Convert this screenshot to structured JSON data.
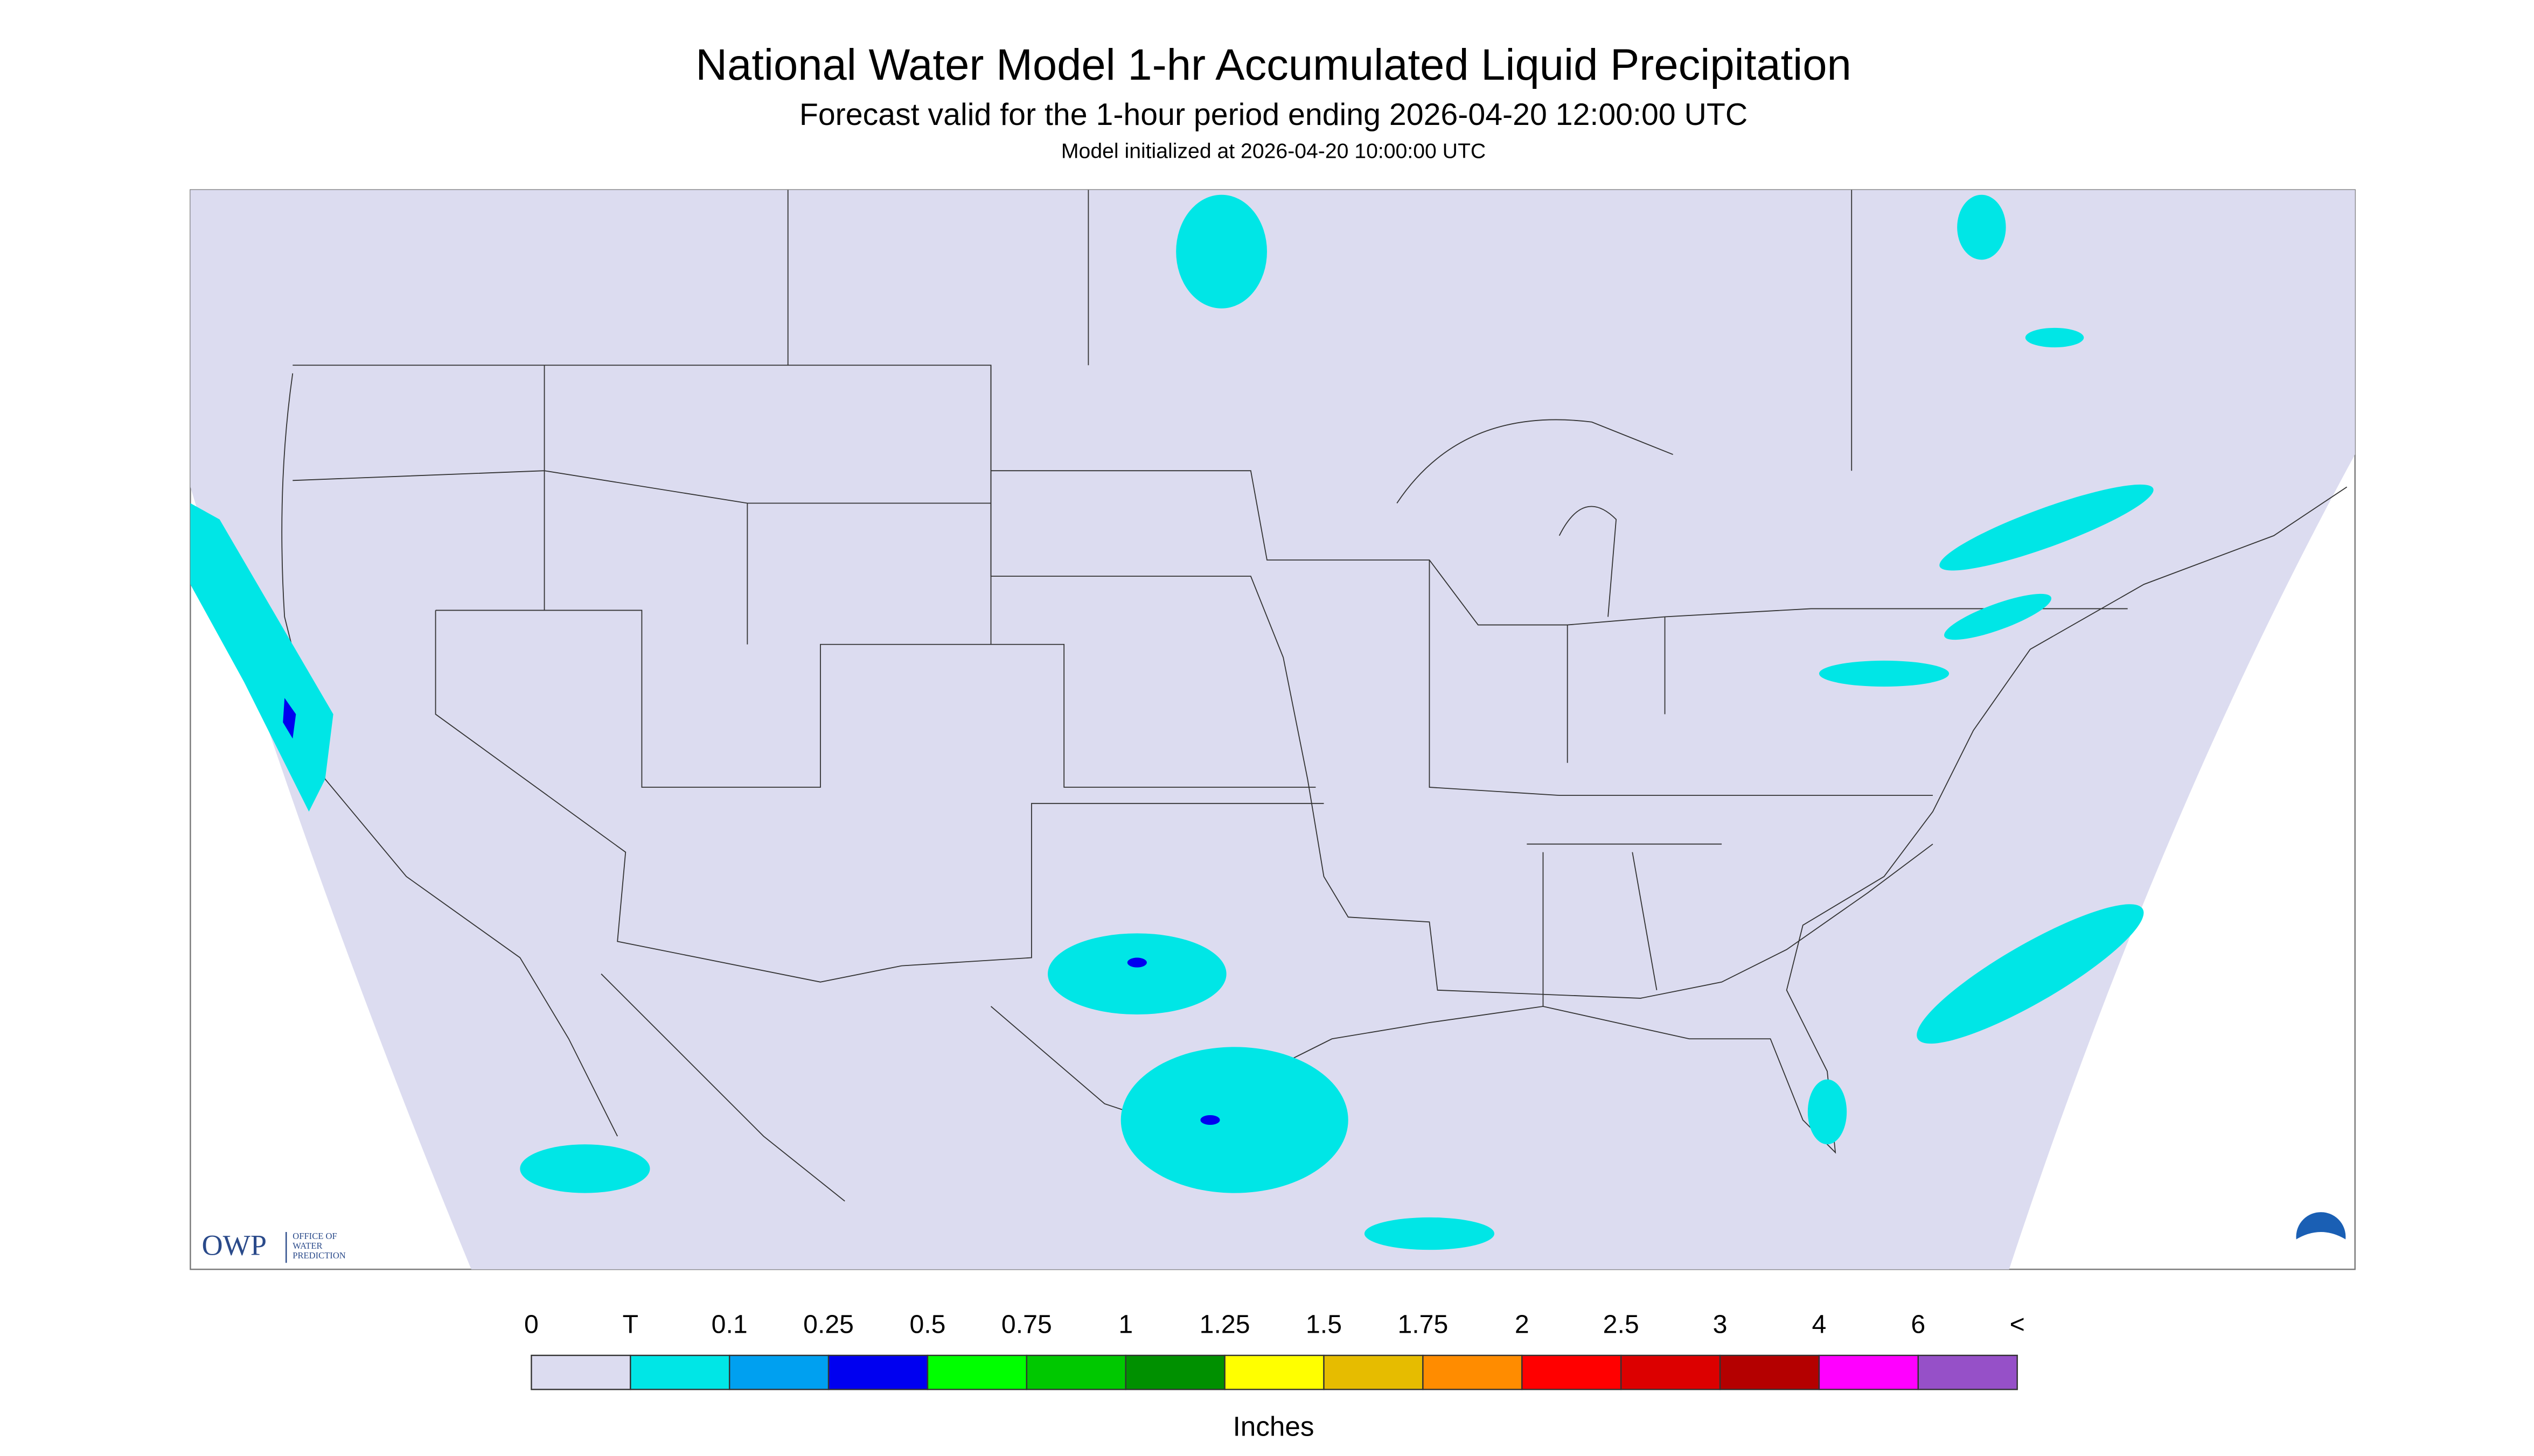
{
  "header": {
    "title": "National Water Model 1-hr Accumulated Liquid Precipitation",
    "subtitle": "Forecast valid for the 1-hour period ending 2026-04-20 12:00:00 UTC",
    "note": "Model initialized at 2026-04-20 10:00:00 UTC"
  },
  "legend": {
    "labels": [
      "0",
      "T",
      "0.1",
      "0.25",
      "0.5",
      "0.75",
      "1",
      "1.25",
      "1.5",
      "1.75",
      "2",
      "2.5",
      "3",
      "4",
      "6",
      "<"
    ],
    "colors": [
      "#dcdcf0",
      "#00e6e6",
      "#00a0f0",
      "#0000f0",
      "#00ff00",
      "#00c800",
      "#009000",
      "#ffff00",
      "#e6bc00",
      "#ff8c00",
      "#ff0000",
      "#dc0000",
      "#b40000",
      "#ff00ff",
      "#9650c8"
    ],
    "unit": "Inches"
  },
  "logo": {
    "acronym": "OWP",
    "name": [
      "OFFICE OF",
      "WATER",
      "PREDICTION"
    ]
  }
}
